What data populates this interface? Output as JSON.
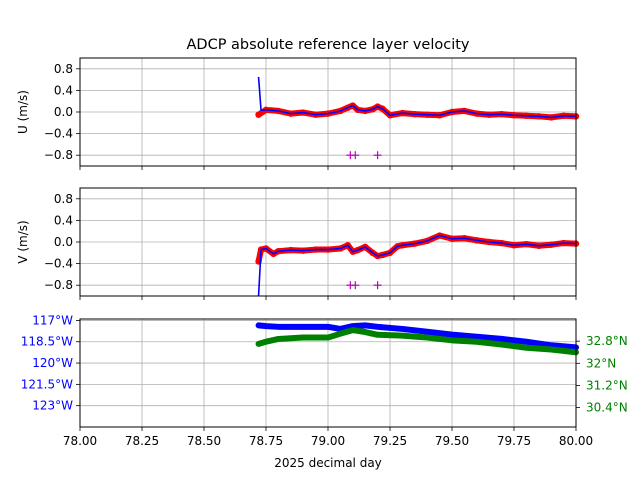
{
  "chart_data": [
    {
      "type": "line",
      "title": "ADCP absolute reference layer velocity",
      "ylabel": "U (m/s)",
      "xlim": [
        78.0,
        80.0
      ],
      "ylim": [
        -1.0,
        1.0
      ],
      "grid": true,
      "yticks": [
        0.8,
        0.4,
        0.0,
        -0.4,
        -0.8
      ],
      "ytick_labels": [
        "0.8",
        "0.4",
        "0.0",
        "−0.4",
        "−0.8"
      ],
      "series": [
        {
          "color": "#ff0000",
          "style": "dots",
          "x": [
            78.72,
            78.75,
            78.8,
            78.85,
            78.9,
            78.95,
            79.0,
            79.05,
            79.08,
            79.1,
            79.12,
            79.15,
            79.18,
            79.2,
            79.22,
            79.25,
            79.3,
            79.35,
            79.4,
            79.45,
            79.5,
            79.55,
            79.6,
            79.65,
            79.7,
            79.75,
            79.8,
            79.85,
            79.9,
            79.95,
            80.0
          ],
          "values": [
            -0.05,
            0.04,
            0.02,
            -0.03,
            -0.01,
            -0.05,
            -0.03,
            0.02,
            0.08,
            0.12,
            0.04,
            0.02,
            0.05,
            0.1,
            0.06,
            -0.06,
            -0.02,
            -0.04,
            -0.05,
            -0.06,
            0.0,
            0.02,
            -0.03,
            -0.05,
            -0.04,
            -0.06,
            -0.07,
            -0.08,
            -0.1,
            -0.07,
            -0.08
          ]
        },
        {
          "color": "#0000ff",
          "style": "line",
          "x": [
            78.72,
            78.73,
            78.75,
            78.8,
            78.85,
            78.9,
            78.95,
            79.0,
            79.05,
            79.08,
            79.1,
            79.12,
            79.15,
            79.18,
            79.2,
            79.22,
            79.25,
            79.3,
            79.35,
            79.4,
            79.45,
            79.5,
            79.55,
            79.6,
            79.65,
            79.7,
            79.75,
            79.8,
            79.85,
            79.9,
            79.95,
            80.0
          ],
          "values": [
            0.65,
            0.03,
            0.04,
            0.02,
            -0.03,
            -0.01,
            -0.05,
            -0.03,
            0.02,
            0.08,
            0.12,
            0.04,
            0.02,
            0.05,
            0.1,
            0.06,
            -0.06,
            -0.02,
            -0.04,
            -0.05,
            -0.06,
            0.0,
            0.02,
            -0.03,
            -0.05,
            -0.04,
            -0.06,
            -0.07,
            -0.08,
            -0.1,
            -0.07,
            -0.08
          ]
        },
        {
          "color": "#bf00bf",
          "style": "plus",
          "x": [
            79.09,
            79.11,
            79.2
          ],
          "values": [
            -0.8,
            -0.8,
            -0.8
          ]
        }
      ]
    },
    {
      "type": "line",
      "ylabel": "V (m/s)",
      "xlim": [
        78.0,
        80.0
      ],
      "ylim": [
        -1.0,
        1.0
      ],
      "grid": true,
      "yticks": [
        0.8,
        0.4,
        0.0,
        -0.4,
        -0.8
      ],
      "ytick_labels": [
        "0.8",
        "0.4",
        "0.0",
        "−0.4",
        "−0.8"
      ],
      "series": [
        {
          "color": "#ff0000",
          "style": "dots",
          "x": [
            78.72,
            78.73,
            78.75,
            78.78,
            78.8,
            78.85,
            78.9,
            78.95,
            79.0,
            79.05,
            79.08,
            79.1,
            79.12,
            79.15,
            79.18,
            79.2,
            79.22,
            79.25,
            79.28,
            79.3,
            79.35,
            79.4,
            79.45,
            79.5,
            79.55,
            79.6,
            79.65,
            79.7,
            79.75,
            79.8,
            79.85,
            79.9,
            79.95,
            80.0
          ],
          "values": [
            -0.36,
            -0.14,
            -0.12,
            -0.22,
            -0.17,
            -0.15,
            -0.16,
            -0.14,
            -0.14,
            -0.12,
            -0.06,
            -0.18,
            -0.15,
            -0.09,
            -0.2,
            -0.26,
            -0.24,
            -0.2,
            -0.08,
            -0.06,
            -0.03,
            0.02,
            0.12,
            0.06,
            0.07,
            0.03,
            0.0,
            -0.02,
            -0.06,
            -0.04,
            -0.07,
            -0.05,
            -0.02,
            -0.03
          ]
        },
        {
          "color": "#0000ff",
          "style": "line",
          "x": [
            78.72,
            78.73,
            78.75,
            78.78,
            78.8,
            78.85,
            78.9,
            78.95,
            79.0,
            79.05,
            79.08,
            79.1,
            79.12,
            79.15,
            79.18,
            79.2,
            79.22,
            79.25,
            79.28,
            79.3,
            79.35,
            79.4,
            79.45,
            79.5,
            79.55,
            79.6,
            79.65,
            79.7,
            79.75,
            79.8,
            79.85,
            79.9,
            79.95,
            80.0
          ],
          "values": [
            -1.0,
            -0.14,
            -0.12,
            -0.22,
            -0.17,
            -0.15,
            -0.16,
            -0.14,
            -0.14,
            -0.12,
            -0.06,
            -0.18,
            -0.15,
            -0.09,
            -0.2,
            -0.26,
            -0.24,
            -0.2,
            -0.08,
            -0.06,
            -0.03,
            0.02,
            0.12,
            0.06,
            0.07,
            0.03,
            0.0,
            -0.02,
            -0.06,
            -0.04,
            -0.07,
            -0.05,
            -0.02,
            -0.03
          ]
        },
        {
          "color": "#bf00bf",
          "style": "plus",
          "x": [
            79.09,
            79.11,
            79.2
          ],
          "values": [
            -0.8,
            -0.8,
            -0.8
          ]
        }
      ]
    },
    {
      "type": "line",
      "xlabel": "2025 decimal day",
      "xlim": [
        78.0,
        80.0
      ],
      "xticks": [
        78.0,
        78.25,
        78.5,
        78.75,
        79.0,
        79.25,
        79.5,
        79.75,
        80.0
      ],
      "xtick_labels": [
        "78.00",
        "78.25",
        "78.50",
        "78.75",
        "79.00",
        "79.25",
        "79.50",
        "79.75",
        "80.00"
      ],
      "grid": true,
      "left_axis": {
        "quantity": "longitude",
        "color": "#0000ff",
        "range": [
          -124.5,
          -116.9
        ],
        "ticks": [
          -117,
          -118.5,
          -120,
          -121.5,
          -123
        ],
        "tick_labels": [
          "117°W",
          "118.5°W",
          "120°W",
          "121.5°W",
          "123°W"
        ]
      },
      "right_axis": {
        "quantity": "latitude",
        "color": "#008000",
        "range": [
          29.7,
          33.6
        ],
        "ticks": [
          32.8,
          32.0,
          31.2,
          30.4
        ],
        "tick_labels": [
          "32.8°N",
          "32°N",
          "31.2°N",
          "30.4°N"
        ]
      },
      "series": [
        {
          "color": "#0000ff",
          "axis": "left",
          "x": [
            78.72,
            78.75,
            78.8,
            78.9,
            79.0,
            79.05,
            79.1,
            79.15,
            79.2,
            79.3,
            79.4,
            79.5,
            79.6,
            79.7,
            79.8,
            79.9,
            80.0
          ],
          "values": [
            -117.35,
            -117.4,
            -117.45,
            -117.45,
            -117.45,
            -117.6,
            -117.4,
            -117.35,
            -117.45,
            -117.6,
            -117.8,
            -118.0,
            -118.15,
            -118.3,
            -118.5,
            -118.75,
            -118.9
          ]
        },
        {
          "color": "#008000",
          "axis": "right",
          "x": [
            78.72,
            78.75,
            78.8,
            78.9,
            79.0,
            79.05,
            79.1,
            79.15,
            79.2,
            79.3,
            79.4,
            79.5,
            79.6,
            79.7,
            79.8,
            79.9,
            80.0
          ],
          "values": [
            32.7,
            32.78,
            32.88,
            32.93,
            32.93,
            33.07,
            33.2,
            33.13,
            33.03,
            33.0,
            32.93,
            32.83,
            32.78,
            32.68,
            32.56,
            32.5,
            32.4
          ]
        }
      ]
    }
  ]
}
